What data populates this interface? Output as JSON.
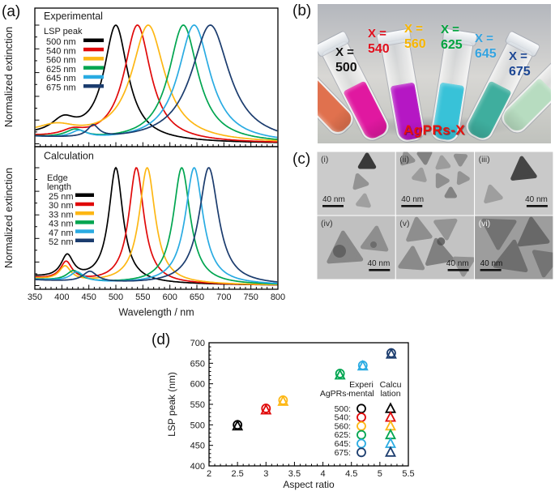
{
  "panels": {
    "a": "(a)",
    "b": "(b)",
    "c": "(c)",
    "d": "(d)"
  },
  "chart_data": [
    {
      "id": "experimental_spectra",
      "type": "line",
      "title": "Experimental",
      "xlabel": "Wavelength / nm",
      "ylabel": "Normalized extinction",
      "xlim": [
        350,
        800
      ],
      "xticks": [
        350,
        400,
        450,
        500,
        550,
        600,
        650,
        700,
        750,
        800
      ],
      "legend_title_lines": [
        "LSP peak"
      ],
      "series": [
        {
          "label": "500 nm",
          "color": "#000000",
          "peak_nm": 500,
          "components": [
            [
              500,
              27,
              1.0
            ],
            [
              403,
              28,
              0.135
            ]
          ],
          "base": 0.06
        },
        {
          "label": "540 nm",
          "color": "#e00909",
          "peak_nm": 540,
          "components": [
            [
              540,
              30,
              1.0
            ],
            [
              420,
              25,
              0.05
            ]
          ],
          "base": 0.05
        },
        {
          "label": "560 nm",
          "color": "#fdb714",
          "peak_nm": 560,
          "components": [
            [
              560,
              37,
              1.0
            ],
            [
              390,
              45,
              0.09
            ]
          ],
          "base": 0.06
        },
        {
          "label": "625 nm",
          "color": "#00a550",
          "peak_nm": 625,
          "components": [
            [
              625,
              33,
              1.0
            ],
            [
              425,
              22,
              0.07
            ]
          ],
          "base": 0.05
        },
        {
          "label": "645 nm",
          "color": "#29abe2",
          "peak_nm": 645,
          "components": [
            [
              645,
              36,
              1.0
            ],
            [
              432,
              18,
              0.06
            ]
          ],
          "base": 0.05
        },
        {
          "label": "675 nm",
          "color": "#1b3c6e",
          "peak_nm": 675,
          "components": [
            [
              675,
              43,
              1.0
            ],
            [
              458,
              13,
              0.1
            ]
          ],
          "base": 0.05
        }
      ]
    },
    {
      "id": "calculated_spectra",
      "type": "line",
      "title": "Calculation",
      "xlabel": "Wavelength / nm",
      "ylabel": "Normalized extinction",
      "xlim": [
        350,
        800
      ],
      "xticks": [
        350,
        400,
        450,
        500,
        550,
        600,
        650,
        700,
        750,
        800
      ],
      "legend_title_lines": [
        "Edge",
        "length"
      ],
      "series": [
        {
          "label": "25 nm",
          "color": "#000000",
          "peak_nm": 500,
          "components": [
            [
              500,
              16,
              1.0
            ],
            [
              410,
              14,
              0.2
            ]
          ],
          "base": 0.07
        },
        {
          "label": "30 nm",
          "color": "#e00909",
          "peak_nm": 538,
          "components": [
            [
              538,
              17,
              1.0
            ],
            [
              408,
              13,
              0.155
            ]
          ],
          "base": 0.06
        },
        {
          "label": "33 nm",
          "color": "#fdb714",
          "peak_nm": 558,
          "components": [
            [
              558,
              18,
              1.0
            ],
            [
              406,
              13,
              0.12
            ]
          ],
          "base": 0.055
        },
        {
          "label": "43 nm",
          "color": "#00a550",
          "peak_nm": 622,
          "components": [
            [
              622,
              19,
              1.0
            ],
            [
              422,
              16,
              0.09
            ]
          ],
          "base": 0.05
        },
        {
          "label": "47 nm",
          "color": "#29abe2",
          "peak_nm": 645,
          "components": [
            [
              645,
              20,
              1.0
            ],
            [
              428,
              15,
              0.08
            ]
          ],
          "base": 0.05
        },
        {
          "label": "52 nm",
          "color": "#1b3c6e",
          "peak_nm": 672,
          "components": [
            [
              672,
              22,
              1.0
            ],
            [
              452,
              16,
              0.09
            ]
          ],
          "base": 0.045
        }
      ]
    },
    {
      "id": "lsp_vs_aspect_ratio",
      "type": "scatter",
      "xlabel": "Aspect ratio",
      "ylabel": "LSP peak (nm)",
      "xlim": [
        2,
        5.5
      ],
      "ylim": [
        400,
        700
      ],
      "xticks": [
        "2",
        "2.5",
        "3",
        "3.5",
        "4",
        "4.5",
        "5",
        "5.5"
      ],
      "yticks": [
        "400",
        "450",
        "500",
        "550",
        "600",
        "650",
        "700"
      ],
      "legend": {
        "group_label": "AgPRs-",
        "col1_lines": [
          "Experi",
          "mental"
        ],
        "col2_lines": [
          "Calcu",
          "lation"
        ],
        "rows": [
          "500:",
          "540:",
          "560:",
          "625:",
          "645:",
          "675:"
        ]
      },
      "colors": [
        "#000000",
        "#e00909",
        "#fdb714",
        "#00a550",
        "#29abe2",
        "#1b3c6e"
      ],
      "series": [
        {
          "name": "Experimental",
          "marker": "circle",
          "x": [
            2.5,
            3.0,
            3.3,
            4.3,
            4.7,
            5.2
          ],
          "y": [
            500,
            540,
            560,
            625,
            645,
            675
          ]
        },
        {
          "name": "Calculation",
          "marker": "triangle",
          "x": [
            2.5,
            3.0,
            3.3,
            4.3,
            4.7,
            5.2
          ],
          "y": [
            497,
            536,
            557,
            621,
            643,
            672
          ]
        }
      ]
    }
  ],
  "photo": {
    "caption": "AgPRs-X",
    "caption_color": "#e8100c",
    "tubes": [
      {
        "prefix": "X =",
        "value": "500",
        "label_color": "#111111",
        "liquid": "#e0714e"
      },
      {
        "prefix": "X =",
        "value": "540",
        "label_color": "#e0101e",
        "liquid": "#e018a0"
      },
      {
        "prefix": "X =",
        "value": "560",
        "label_color": "#f7b500",
        "liquid": "#b517c4"
      },
      {
        "prefix": "X =",
        "value": "625",
        "label_color": "#00a33e",
        "liquid": "#38c2d8"
      },
      {
        "prefix": "X =",
        "value": "645",
        "label_color": "#33a3e0",
        "liquid": "#3fae9e"
      },
      {
        "prefix": "X =",
        "value": "675",
        "label_color": "#1c4693",
        "liquid": "#b7dcc0"
      }
    ]
  },
  "tem": {
    "scale_label": "40 nm",
    "cells": [
      {
        "tag": "(i)",
        "bg": "#cbcbcb",
        "bar": "left",
        "label_color": "#333333",
        "triangles": [
          [
            62,
            14,
            10,
            0,
            "#2e2e2e"
          ],
          [
            53,
            38,
            9,
            18,
            "#8f8f8f"
          ],
          [
            58,
            62,
            8,
            -8,
            "#9d9d9d"
          ]
        ],
        "spots": []
      },
      {
        "tag": "(ii)",
        "bg": "#c4c4c4",
        "bar": "left",
        "label_color": "#333333",
        "triangles": [
          [
            14,
            9,
            8,
            15,
            "#8a8a8a"
          ],
          [
            36,
            6,
            8,
            185,
            "#7d7d7d"
          ],
          [
            58,
            15,
            8,
            8,
            "#9a9a9a"
          ],
          [
            80,
            9,
            7,
            178,
            "#8b8b8b"
          ],
          [
            30,
            30,
            8,
            -12,
            "#999999"
          ],
          [
            56,
            36,
            8,
            150,
            "#8c8c8c"
          ],
          [
            82,
            33,
            7,
            25,
            "#909090"
          ],
          [
            68,
            52,
            6,
            0,
            "#7f7f7f"
          ]
        ],
        "spots": []
      },
      {
        "tag": "(iii)",
        "bg": "#c9c9c9",
        "bar": "right",
        "label_color": "#333333",
        "triangles": [
          [
            60,
            24,
            16,
            6,
            "#3c3c3c"
          ],
          [
            22,
            54,
            11,
            14,
            "#9b9b9b"
          ]
        ],
        "spots": []
      },
      {
        "tag": "(iv)",
        "bg": "#c0c0c0",
        "bar": "right",
        "label_color": "#333333",
        "triangles": [
          [
            34,
            44,
            23,
            4,
            "#838383"
          ],
          [
            72,
            32,
            17,
            -6,
            "#8b8b8b"
          ]
        ],
        "spots": [
          [
            28,
            44,
            8,
            "#565656"
          ],
          [
            70,
            36,
            4,
            "#606060"
          ]
        ]
      },
      {
        "tag": "(v)",
        "bg": "#c3c3c3",
        "bar": "right",
        "label_color": "#333333",
        "triangles": [
          [
            28,
            20,
            16,
            8,
            "#8b8b8b"
          ],
          [
            62,
            14,
            14,
            184,
            "#919191"
          ],
          [
            20,
            56,
            16,
            -4,
            "#868686"
          ],
          [
            53,
            48,
            18,
            10,
            "#7b7b7b"
          ],
          [
            84,
            60,
            13,
            178,
            "#8f8f8f"
          ]
        ],
        "spots": [
          [
            56,
            32,
            5,
            "#4e4e4e"
          ]
        ]
      },
      {
        "tag": "(vi)",
        "bg": "#9d9d9d",
        "bar": "left",
        "label_color": "#f2f2f2",
        "triangles": [
          [
            30,
            18,
            22,
            178,
            "#6f6f6f"
          ],
          [
            72,
            24,
            20,
            6,
            "#656565"
          ],
          [
            46,
            54,
            22,
            -8,
            "#6b6b6b"
          ],
          [
            88,
            56,
            18,
            172,
            "#727272"
          ]
        ],
        "spots": []
      }
    ]
  }
}
